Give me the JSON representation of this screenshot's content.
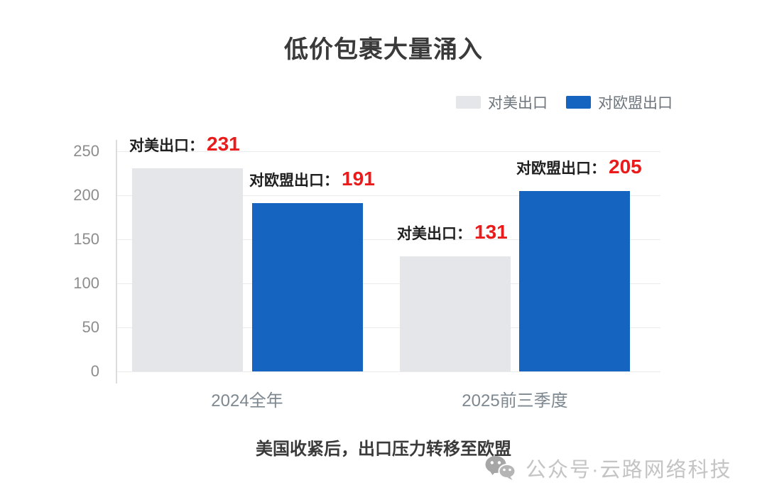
{
  "chart_data": {
    "type": "bar",
    "title": "低价包裹大量涌入",
    "categories": [
      "2024全年",
      "2025前三季度"
    ],
    "series": [
      {
        "name": "对美出口",
        "color": "#e4e6e9",
        "values": [
          231,
          131
        ]
      },
      {
        "name": "对欧盟出口",
        "color": "#1565c0",
        "values": [
          191,
          205
        ]
      }
    ],
    "ylim": [
      0,
      250
    ],
    "yticks": [
      0,
      50,
      100,
      150,
      200,
      250
    ],
    "grid": true,
    "legend_position": "top-right",
    "bar_labels": [
      {
        "prefix": "对美出口：",
        "value": "231"
      },
      {
        "prefix": "对欧盟出口：",
        "value": "191"
      },
      {
        "prefix": "对美出口：",
        "value": "131"
      },
      {
        "prefix": "对欧盟出口：",
        "value": "205"
      }
    ],
    "label_value_color": "#ea1b1b",
    "caption": "美国收紧后，出口压力转移至欧盟"
  },
  "watermark": {
    "icon": "wechat-icon",
    "text": "公众号·云路网络科技"
  },
  "colors": {
    "us_series": "#e4e6e9",
    "eu_series": "#1565c0",
    "value_red": "#ea1b1b"
  }
}
